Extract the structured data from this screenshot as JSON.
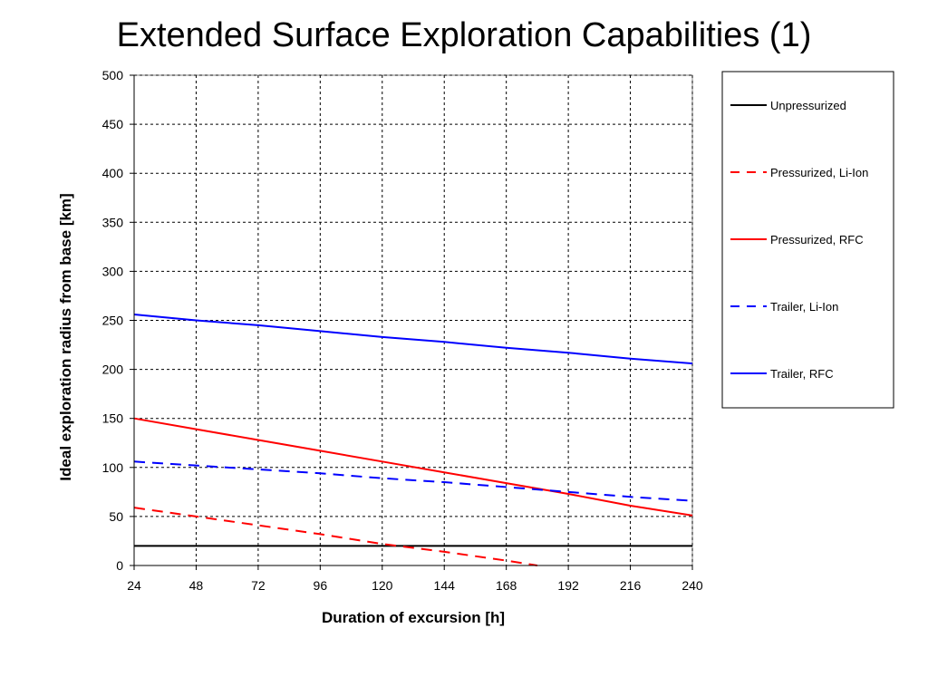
{
  "title": "Extended Surface Exploration Capabilities (1)",
  "chart_data": {
    "type": "line",
    "xlabel": "Duration of excursion [h]",
    "ylabel": "Ideal exploration radius from base [km]",
    "xlim": [
      24,
      240
    ],
    "ylim": [
      0,
      500
    ],
    "xticks": [
      24,
      48,
      72,
      96,
      120,
      144,
      168,
      192,
      216,
      240
    ],
    "yticks": [
      0,
      50,
      100,
      150,
      200,
      250,
      300,
      350,
      400,
      450,
      500
    ],
    "grid": true,
    "legend_position": "right",
    "series": [
      {
        "name": "Unpressurized",
        "color": "#000000",
        "dash": "solid",
        "x": [
          24,
          240
        ],
        "y": [
          20,
          20
        ]
      },
      {
        "name": "Pressurized, Li-Ion",
        "color": "#ff0000",
        "dash": "dashed",
        "x": [
          24,
          48,
          72,
          96,
          120,
          144,
          168,
          180
        ],
        "y": [
          59,
          50,
          41,
          32,
          22,
          14,
          5,
          0
        ]
      },
      {
        "name": "Pressurized, RFC",
        "color": "#ff0000",
        "dash": "solid",
        "x": [
          24,
          48,
          72,
          96,
          120,
          144,
          168,
          192,
          216,
          240
        ],
        "y": [
          150,
          139,
          128,
          117,
          106,
          95,
          84,
          73,
          61,
          51
        ]
      },
      {
        "name": "Trailer, Li-Ion",
        "color": "#0000ff",
        "dash": "dashed",
        "x": [
          24,
          48,
          72,
          96,
          120,
          144,
          168,
          192,
          216,
          240
        ],
        "y": [
          106,
          102,
          98,
          94,
          89,
          85,
          80,
          75,
          70,
          66
        ]
      },
      {
        "name": "Trailer, RFC",
        "color": "#0000ff",
        "dash": "solid",
        "x": [
          24,
          48,
          72,
          96,
          120,
          144,
          168,
          192,
          216,
          240
        ],
        "y": [
          256,
          250,
          245,
          239,
          233,
          228,
          222,
          217,
          211,
          206
        ]
      }
    ]
  }
}
